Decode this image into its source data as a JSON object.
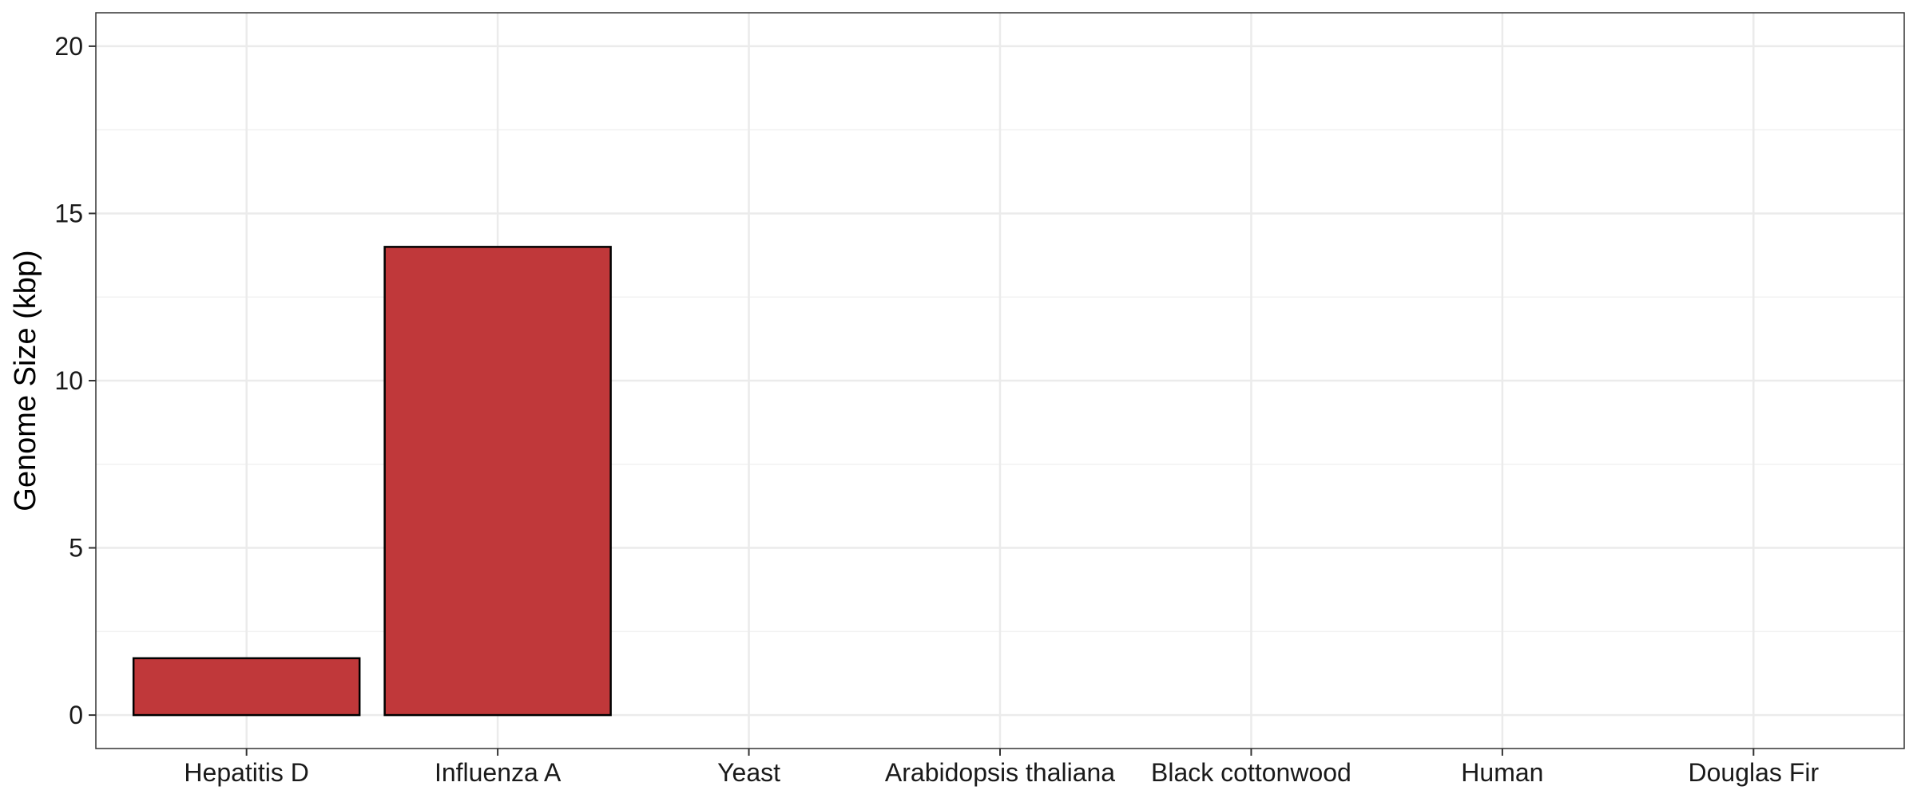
{
  "chart_data": {
    "type": "bar",
    "title": "",
    "xlabel": "",
    "ylabel": "Genome Size (kbp)",
    "categories": [
      "Hepatitis D",
      "Influenza A",
      "Yeast",
      "Arabidopsis thaliana",
      "Black cottonwood",
      "Human",
      "Douglas Fir"
    ],
    "values": [
      1.7,
      14.0,
      null,
      null,
      null,
      null,
      null
    ],
    "ylim": [
      -1,
      21
    ],
    "yticks": [
      0,
      5,
      10,
      15,
      20
    ],
    "ytick_labels": [
      "0",
      "5",
      "10",
      "15",
      "20"
    ],
    "grid": true,
    "legend": "none",
    "bar_color": "#c0383a",
    "bar_edge_color": "#000000"
  }
}
